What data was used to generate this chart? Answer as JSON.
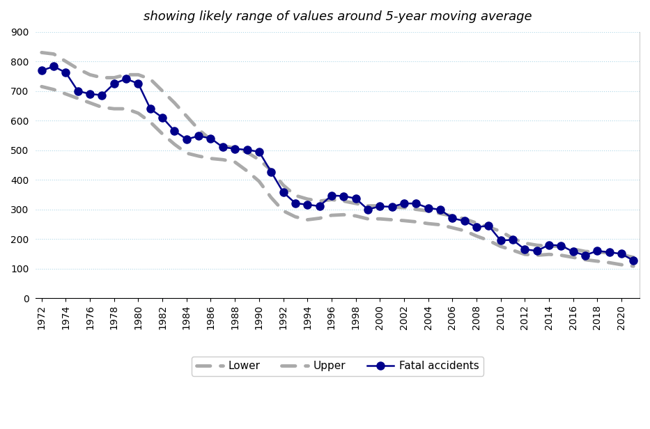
{
  "title": "showing likely range of values around 5-year moving average",
  "years": [
    1972,
    1973,
    1974,
    1975,
    1976,
    1977,
    1978,
    1979,
    1980,
    1981,
    1982,
    1983,
    1984,
    1985,
    1986,
    1987,
    1988,
    1989,
    1990,
    1991,
    1992,
    1993,
    1994,
    1995,
    1996,
    1997,
    1998,
    1999,
    2000,
    2001,
    2002,
    2003,
    2004,
    2005,
    2006,
    2007,
    2008,
    2009,
    2010,
    2011,
    2012,
    2013,
    2014,
    2015,
    2016,
    2017,
    2018,
    2019,
    2020,
    2021
  ],
  "fatal_accidents": [
    769,
    783,
    762,
    700,
    690,
    686,
    725,
    741,
    725,
    640,
    610,
    565,
    537,
    548,
    540,
    510,
    505,
    501,
    495,
    427,
    358,
    321,
    316,
    311,
    347,
    345,
    337,
    300,
    310,
    309,
    320,
    320,
    305,
    299,
    270,
    261,
    240,
    245,
    195,
    197,
    165,
    160,
    180,
    178,
    157,
    145,
    160,
    155,
    150,
    127
  ],
  "lower": [
    715,
    705,
    690,
    675,
    660,
    645,
    640,
    640,
    625,
    595,
    555,
    520,
    490,
    480,
    472,
    468,
    460,
    430,
    395,
    340,
    295,
    275,
    265,
    270,
    280,
    282,
    278,
    268,
    268,
    265,
    262,
    258,
    252,
    248,
    238,
    228,
    210,
    195,
    175,
    162,
    148,
    145,
    148,
    145,
    138,
    130,
    125,
    120,
    113,
    108
  ],
  "upper": [
    830,
    825,
    800,
    775,
    755,
    745,
    745,
    755,
    755,
    740,
    700,
    660,
    615,
    570,
    535,
    515,
    507,
    493,
    468,
    432,
    382,
    347,
    335,
    328,
    333,
    328,
    320,
    312,
    312,
    308,
    306,
    300,
    295,
    286,
    278,
    268,
    254,
    240,
    226,
    202,
    186,
    179,
    176,
    175,
    166,
    158,
    156,
    153,
    147,
    138
  ],
  "fatal_color": "#00008B",
  "band_color": "#AAAAAA",
  "bg_color": "#FFFFFF",
  "grid_color": "#B0D8E8",
  "ylim": [
    0,
    900
  ],
  "yticks": [
    0,
    100,
    200,
    300,
    400,
    500,
    600,
    700,
    800,
    900
  ],
  "title_fontsize": 13,
  "title_style": "italic"
}
